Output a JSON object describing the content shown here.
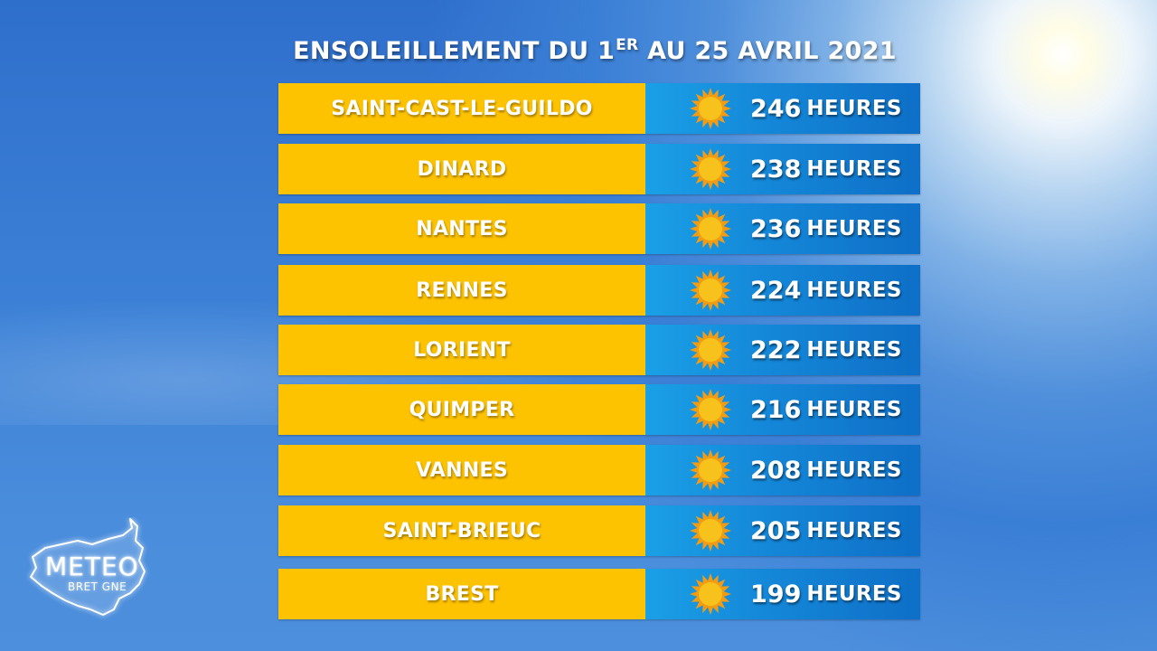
{
  "header": {
    "title_main": "ENSOLEILLEMENT DU 1",
    "title_sup": "ER",
    "title_rest": " AU 25 AVRIL 2021"
  },
  "rows": [
    {
      "city": "SAINT-CAST-LE-GUILDO",
      "hours": "246",
      "unit": "HEURES",
      "icon": "sun-icon"
    },
    {
      "city": "DINARD",
      "hours": "238",
      "unit": "HEURES",
      "icon": "sun-icon"
    },
    {
      "city": "NANTES",
      "hours": "236",
      "unit": "HEURES",
      "icon": "sun-icon"
    },
    {
      "city": "RENNES",
      "hours": "224",
      "unit": "HEURES",
      "icon": "sun-icon"
    },
    {
      "city": "LORIENT",
      "hours": "222",
      "unit": "HEURES",
      "icon": "sun-icon"
    },
    {
      "city": "QUIMPER",
      "hours": "216",
      "unit": "HEURES",
      "icon": "sun-icon"
    },
    {
      "city": "VANNES",
      "hours": "208",
      "unit": "HEURES",
      "icon": "sun-icon"
    },
    {
      "city": "SAINT-BRIEUC",
      "hours": "205",
      "unit": "HEURES",
      "icon": "sun-icon"
    },
    {
      "city": "BREST",
      "hours": "199",
      "unit": "HEURES",
      "icon": "sun-icon"
    }
  ],
  "logo": {
    "main": "METEO",
    "sub": "BRET  GNE"
  },
  "colors": {
    "city_background": "#fdc300",
    "value_background": "#1487d8",
    "sky": "#3b80d6",
    "sun_core": "#f7c21b",
    "sun_rays": "#f39c12"
  }
}
